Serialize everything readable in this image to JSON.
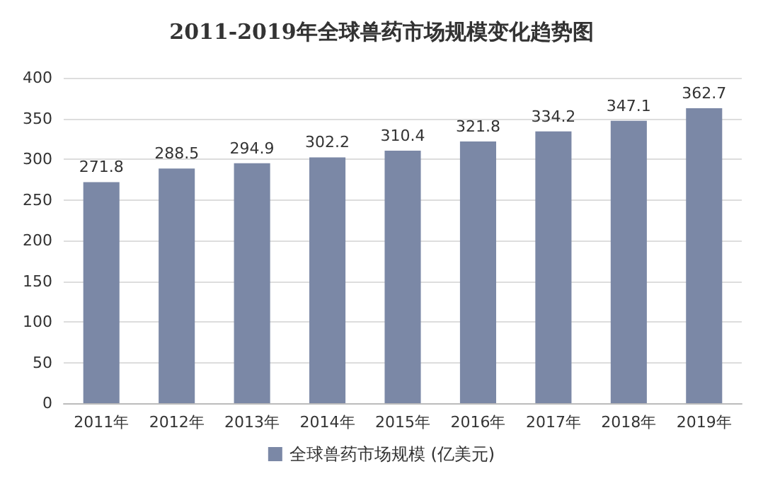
{
  "chart_data": {
    "type": "bar",
    "title": "2011-2019年全球兽药市场规模变化趋势图",
    "categories": [
      "2011年",
      "2012年",
      "2013年",
      "2014年",
      "2015年",
      "2016年",
      "2017年",
      "2018年",
      "2019年"
    ],
    "series": [
      {
        "name": "全球兽药市场规模 (亿美元)",
        "color": "#7b88a6",
        "values": [
          271.8,
          288.5,
          294.9,
          302.2,
          310.4,
          321.8,
          334.2,
          347.1,
          362.7
        ]
      }
    ],
    "data_labels": true,
    "ylim": [
      0,
      400
    ],
    "yticks": [
      0,
      50,
      100,
      150,
      200,
      250,
      300,
      350,
      400
    ],
    "grid": "y",
    "legend": "bottom"
  }
}
